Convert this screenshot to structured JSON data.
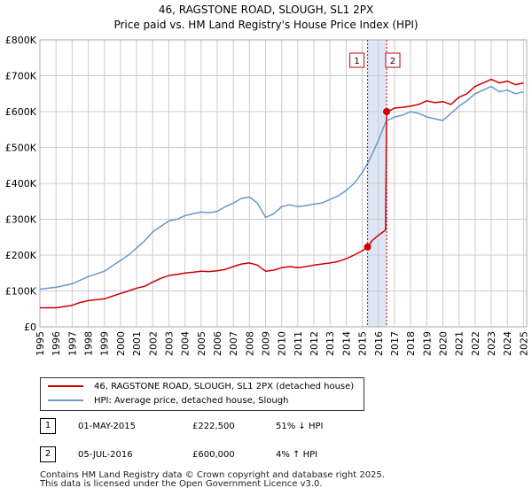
{
  "chart_data": {
    "type": "line",
    "title": "46, RAGSTONE ROAD, SLOUGH, SL1 2PX",
    "subtitle": "Price paid vs. HM Land Registry's House Price Index (HPI)",
    "xlabel": "",
    "ylabel": "",
    "xlim": [
      1995,
      2025.2
    ],
    "ylim": [
      0,
      800000
    ],
    "x_ticks": [
      "1995",
      "1996",
      "1997",
      "1998",
      "1999",
      "2000",
      "2001",
      "2002",
      "2003",
      "2004",
      "2005",
      "2006",
      "2007",
      "2008",
      "2009",
      "2010",
      "2011",
      "2012",
      "2013",
      "2014",
      "2015",
      "2016",
      "2017",
      "2018",
      "2019",
      "2020",
      "2021",
      "2022",
      "2023",
      "2024",
      "2025"
    ],
    "y_ticks": [
      {
        "value": 0,
        "label": "£0"
      },
      {
        "value": 100000,
        "label": "£100K"
      },
      {
        "value": 200000,
        "label": "£200K"
      },
      {
        "value": 300000,
        "label": "£300K"
      },
      {
        "value": 400000,
        "label": "£400K"
      },
      {
        "value": 500000,
        "label": "£500K"
      },
      {
        "value": 600000,
        "label": "£600K"
      },
      {
        "value": 700000,
        "label": "£700K"
      },
      {
        "value": 800000,
        "label": "£800K"
      }
    ],
    "grid": true,
    "series": [
      {
        "name": "46, RAGSTONE ROAD, SLOUGH, SL1 2PX (detached house)",
        "color": "#cc0000",
        "x": [
          1995.0,
          1996.0,
          1997.0,
          1997.5,
          1998.0,
          1999.0,
          2000.0,
          2000.5,
          2001.0,
          2001.5,
          2002.0,
          2002.5,
          2003.0,
          2003.5,
          2004.0,
          2004.5,
          2005.0,
          2005.5,
          2006.0,
          2006.5,
          2007.0,
          2007.5,
          2008.0,
          2008.5,
          2009.0,
          2009.5,
          2010.0,
          2010.5,
          2011.0,
          2011.5,
          2012.0,
          2012.5,
          2013.0,
          2013.5,
          2014.0,
          2014.5,
          2015.0,
          2015.33,
          2015.6,
          2016.0,
          2016.45,
          2016.51,
          2016.8,
          2017.0,
          2017.5,
          2018.0,
          2018.5,
          2019.0,
          2019.5,
          2020.0,
          2020.5,
          2021.0,
          2021.5,
          2022.0,
          2022.5,
          2023.0,
          2023.5,
          2024.0,
          2024.5,
          2025.0
        ],
        "y": [
          53000,
          53000,
          60000,
          68000,
          73000,
          78000,
          93000,
          100000,
          108000,
          113000,
          125000,
          135000,
          143000,
          146000,
          150000,
          152000,
          155000,
          154000,
          156000,
          160000,
          168000,
          175000,
          178000,
          172000,
          155000,
          158000,
          165000,
          168000,
          165000,
          168000,
          172000,
          175000,
          178000,
          182000,
          190000,
          200000,
          212000,
          222500,
          240000,
          255000,
          270000,
          600000,
          605000,
          610000,
          612000,
          615000,
          620000,
          630000,
          625000,
          628000,
          620000,
          640000,
          650000,
          670000,
          680000,
          690000,
          680000,
          685000,
          675000,
          680000
        ]
      },
      {
        "name": "HPI: Average price, detached house, Slough",
        "color": "#6699cc",
        "x": [
          1995.0,
          1996.0,
          1997.0,
          1997.5,
          1998.0,
          1999.0,
          2000.0,
          2000.5,
          2001.0,
          2001.5,
          2002.0,
          2002.5,
          2003.0,
          2003.5,
          2004.0,
          2004.5,
          2005.0,
          2005.5,
          2006.0,
          2006.5,
          2007.0,
          2007.5,
          2008.0,
          2008.5,
          2009.0,
          2009.5,
          2010.0,
          2010.5,
          2011.0,
          2011.5,
          2012.0,
          2012.5,
          2013.0,
          2013.5,
          2014.0,
          2014.5,
          2015.0,
          2015.33,
          2015.6,
          2016.0,
          2016.45,
          2016.51,
          2016.8,
          2017.0,
          2017.5,
          2018.0,
          2018.5,
          2019.0,
          2019.5,
          2020.0,
          2020.5,
          2021.0,
          2021.5,
          2022.0,
          2022.5,
          2023.0,
          2023.5,
          2024.0,
          2024.5,
          2025.0
        ],
        "y": [
          105000,
          110000,
          120000,
          130000,
          140000,
          155000,
          185000,
          200000,
          220000,
          240000,
          265000,
          280000,
          295000,
          300000,
          310000,
          315000,
          320000,
          318000,
          322000,
          335000,
          345000,
          358000,
          362000,
          345000,
          305000,
          315000,
          335000,
          340000,
          335000,
          338000,
          342000,
          345000,
          355000,
          365000,
          380000,
          400000,
          430000,
          455000,
          480000,
          520000,
          570000,
          575000,
          580000,
          585000,
          590000,
          600000,
          595000,
          585000,
          580000,
          575000,
          595000,
          615000,
          630000,
          650000,
          660000,
          670000,
          655000,
          660000,
          650000,
          655000
        ]
      }
    ],
    "transactions": [
      {
        "badge": "1",
        "date": "01-MAY-2015",
        "price": "£222,500",
        "hpi_change": "51% ↓ HPI",
        "x": 2015.33,
        "y": 222500
      },
      {
        "badge": "2",
        "date": "05-JUL-2016",
        "price": "£600,000",
        "hpi_change": "4% ↑ HPI",
        "x": 2016.51,
        "y": 600000
      }
    ],
    "shaded_region": [
      2015.33,
      2016.51
    ]
  },
  "legend": {
    "property_label": "46, RAGSTONE ROAD, SLOUGH, SL1 2PX (detached house)",
    "hpi_label": "HPI: Average price, detached house, Slough"
  },
  "colors": {
    "property": "#cc0000",
    "hpi": "#6699cc",
    "shade": "#dde6f5",
    "grid": "#cccccc"
  },
  "footer": {
    "line1": "Contains HM Land Registry data © Crown copyright and database right 2025.",
    "line2": "This data is licensed under the Open Government Licence v3.0."
  }
}
